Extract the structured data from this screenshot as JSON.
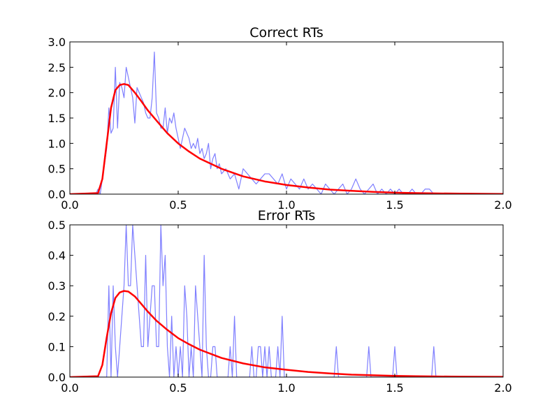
{
  "chart_data": [
    {
      "type": "line",
      "title": "Correct RTs",
      "xlim": [
        0.0,
        2.0
      ],
      "ylim": [
        0.0,
        3.0
      ],
      "x_ticks": [
        "0.0",
        "0.5",
        "1.0",
        "1.5",
        "2.0"
      ],
      "y_ticks": [
        "0.0",
        "0.5",
        "1.0",
        "1.5",
        "2.0",
        "2.5",
        "3.0"
      ],
      "grid": false,
      "series": [
        {
          "color": "#7f7fff",
          "style": "histogram-outline",
          "x": [
            0.0,
            0.12,
            0.13,
            0.14,
            0.15,
            0.16,
            0.17,
            0.18,
            0.19,
            0.2,
            0.21,
            0.22,
            0.23,
            0.24,
            0.25,
            0.26,
            0.27,
            0.28,
            0.29,
            0.3,
            0.31,
            0.32,
            0.33,
            0.34,
            0.35,
            0.36,
            0.37,
            0.38,
            0.39,
            0.4,
            0.41,
            0.42,
            0.43,
            0.44,
            0.45,
            0.46,
            0.47,
            0.48,
            0.49,
            0.5,
            0.51,
            0.52,
            0.53,
            0.54,
            0.55,
            0.56,
            0.57,
            0.58,
            0.59,
            0.6,
            0.61,
            0.62,
            0.63,
            0.64,
            0.65,
            0.66,
            0.67,
            0.68,
            0.69,
            0.7,
            0.72,
            0.74,
            0.76,
            0.78,
            0.8,
            0.82,
            0.84,
            0.86,
            0.88,
            0.9,
            0.92,
            0.94,
            0.96,
            0.98,
            1.0,
            1.02,
            1.04,
            1.06,
            1.08,
            1.1,
            1.12,
            1.14,
            1.16,
            1.18,
            1.2,
            1.22,
            1.24,
            1.26,
            1.28,
            1.3,
            1.32,
            1.34,
            1.36,
            1.38,
            1.4,
            1.42,
            1.44,
            1.46,
            1.48,
            1.5,
            1.52,
            1.54,
            1.56,
            1.58,
            1.6,
            1.62,
            1.64,
            1.66,
            1.68,
            2.0
          ],
          "values": [
            0.0,
            0.0,
            0.1,
            0.0,
            0.3,
            0.6,
            0.9,
            1.7,
            1.2,
            1.3,
            2.5,
            1.3,
            2.2,
            2.1,
            1.9,
            2.5,
            2.3,
            2.1,
            1.9,
            1.4,
            2.1,
            2.0,
            1.9,
            1.8,
            1.6,
            1.5,
            1.5,
            1.9,
            2.8,
            1.6,
            1.5,
            1.3,
            1.3,
            1.7,
            1.2,
            1.5,
            1.4,
            1.6,
            1.3,
            1.1,
            0.9,
            1.1,
            1.3,
            1.2,
            1.1,
            0.9,
            1.0,
            0.9,
            1.1,
            0.8,
            0.9,
            0.7,
            0.8,
            1.0,
            0.5,
            0.7,
            0.8,
            0.5,
            0.6,
            0.4,
            0.5,
            0.3,
            0.4,
            0.1,
            0.5,
            0.4,
            0.3,
            0.2,
            0.3,
            0.4,
            0.4,
            0.3,
            0.2,
            0.4,
            0.1,
            0.3,
            0.2,
            0.1,
            0.3,
            0.1,
            0.2,
            0.1,
            0.0,
            0.2,
            0.1,
            0.0,
            0.1,
            0.2,
            0.0,
            0.1,
            0.3,
            0.1,
            0.0,
            0.1,
            0.2,
            0.0,
            0.1,
            0.0,
            0.1,
            0.0,
            0.1,
            0.0,
            0.0,
            0.1,
            0.0,
            0.0,
            0.1,
            0.1,
            0.0,
            0.0
          ]
        },
        {
          "color": "#ff0000",
          "style": "smooth-curve",
          "x": [
            0.0,
            0.13,
            0.15,
            0.17,
            0.19,
            0.21,
            0.23,
            0.25,
            0.27,
            0.3,
            0.33,
            0.36,
            0.4,
            0.45,
            0.5,
            0.55,
            0.6,
            0.7,
            0.8,
            0.9,
            1.0,
            1.1,
            1.2,
            1.3,
            1.4,
            1.5,
            1.6,
            1.7,
            1.8,
            2.0
          ],
          "values": [
            0.0,
            0.02,
            0.3,
            1.0,
            1.7,
            2.05,
            2.15,
            2.17,
            2.15,
            2.0,
            1.83,
            1.65,
            1.45,
            1.2,
            1.0,
            0.84,
            0.7,
            0.5,
            0.35,
            0.25,
            0.18,
            0.13,
            0.09,
            0.065,
            0.045,
            0.03,
            0.02,
            0.014,
            0.01,
            0.004
          ]
        }
      ]
    },
    {
      "type": "line",
      "title": "Error RTs",
      "xlim": [
        0.0,
        2.0
      ],
      "ylim": [
        0.0,
        0.5
      ],
      "x_ticks": [
        "0.0",
        "0.5",
        "1.0",
        "1.5",
        "2.0"
      ],
      "y_ticks": [
        "0.0",
        "0.1",
        "0.2",
        "0.3",
        "0.4",
        "0.5"
      ],
      "grid": false,
      "series": [
        {
          "color": "#7f7fff",
          "style": "histogram-outline",
          "x": [
            0.0,
            0.17,
            0.18,
            0.19,
            0.2,
            0.21,
            0.22,
            0.23,
            0.24,
            0.25,
            0.26,
            0.27,
            0.28,
            0.29,
            0.3,
            0.31,
            0.32,
            0.33,
            0.34,
            0.35,
            0.36,
            0.37,
            0.38,
            0.39,
            0.4,
            0.41,
            0.42,
            0.43,
            0.44,
            0.45,
            0.46,
            0.47,
            0.48,
            0.49,
            0.5,
            0.51,
            0.52,
            0.53,
            0.54,
            0.55,
            0.56,
            0.57,
            0.58,
            0.59,
            0.6,
            0.61,
            0.62,
            0.63,
            0.64,
            0.65,
            0.66,
            0.67,
            0.68,
            0.69,
            0.7,
            0.71,
            0.72,
            0.73,
            0.74,
            0.75,
            0.76,
            0.77,
            0.78,
            0.79,
            0.8,
            0.81,
            0.82,
            0.83,
            0.84,
            0.85,
            0.86,
            0.87,
            0.88,
            0.89,
            0.9,
            0.91,
            0.92,
            0.93,
            0.94,
            0.95,
            0.96,
            0.97,
            0.98,
            0.99,
            1.0,
            1.22,
            1.23,
            1.24,
            1.25,
            1.37,
            1.38,
            1.39,
            1.4,
            1.49,
            1.5,
            1.51,
            1.52,
            1.67,
            1.68,
            1.69,
            1.7,
            2.0
          ],
          "values": [
            0.0,
            0.0,
            0.3,
            0.0,
            0.3,
            0.1,
            0.0,
            0.1,
            0.2,
            0.3,
            0.5,
            0.3,
            0.3,
            0.5,
            0.4,
            0.3,
            0.2,
            0.1,
            0.1,
            0.4,
            0.1,
            0.2,
            0.3,
            0.3,
            0.1,
            0.1,
            0.5,
            0.3,
            0.4,
            0.1,
            0.0,
            0.2,
            0.0,
            0.1,
            0.0,
            0.1,
            0.0,
            0.3,
            0.2,
            0.0,
            0.1,
            0.0,
            0.3,
            0.2,
            0.1,
            0.0,
            0.4,
            0.1,
            0.0,
            0.0,
            0.1,
            0.1,
            0.0,
            0.0,
            0.0,
            0.0,
            0.0,
            0.0,
            0.1,
            0.0,
            0.2,
            0.0,
            0.0,
            0.0,
            0.0,
            0.0,
            0.0,
            0.0,
            0.1,
            0.0,
            0.0,
            0.1,
            0.1,
            0.0,
            0.1,
            0.0,
            0.1,
            0.0,
            0.0,
            0.0,
            0.1,
            0.0,
            0.2,
            0.0,
            0.0,
            0.0,
            0.1,
            0.0,
            0.0,
            0.0,
            0.1,
            0.0,
            0.0,
            0.0,
            0.1,
            0.0,
            0.0,
            0.0,
            0.1,
            0.0,
            0.0,
            0.0
          ]
        },
        {
          "color": "#ff0000",
          "style": "smooth-curve",
          "x": [
            0.0,
            0.13,
            0.15,
            0.17,
            0.19,
            0.21,
            0.23,
            0.25,
            0.27,
            0.3,
            0.33,
            0.36,
            0.4,
            0.45,
            0.5,
            0.55,
            0.6,
            0.7,
            0.8,
            0.9,
            1.0,
            1.1,
            1.2,
            1.3,
            1.4,
            1.5,
            1.6,
            1.7,
            1.8,
            2.0
          ],
          "values": [
            0.0,
            0.003,
            0.04,
            0.13,
            0.21,
            0.26,
            0.278,
            0.283,
            0.281,
            0.265,
            0.24,
            0.215,
            0.185,
            0.155,
            0.128,
            0.108,
            0.09,
            0.063,
            0.045,
            0.032,
            0.024,
            0.017,
            0.012,
            0.008,
            0.006,
            0.004,
            0.003,
            0.002,
            0.0015,
            0.0008
          ]
        }
      ]
    }
  ]
}
